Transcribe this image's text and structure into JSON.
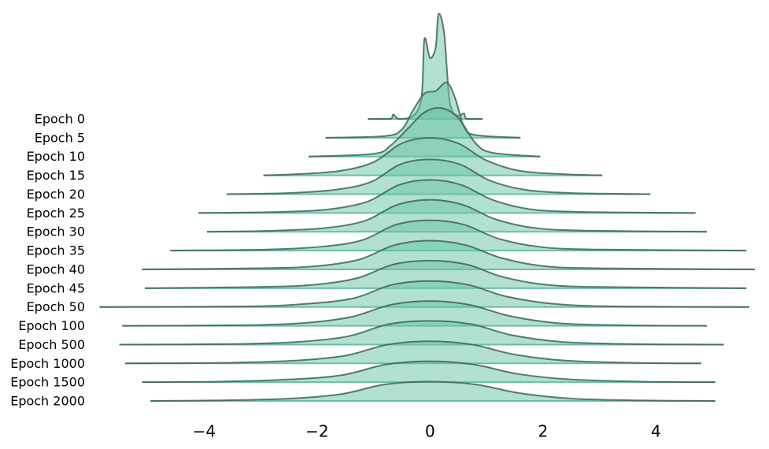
{
  "chart_data": {
    "type": "ridgeline",
    "xlim": [
      -5.9,
      5.75
    ],
    "xticks": [
      {
        "value": -4,
        "label": "−4"
      },
      {
        "value": -2,
        "label": "−2"
      },
      0,
      2,
      4
    ],
    "grid": false,
    "fill_color": "#66c2a5",
    "line_color": "#3f6359",
    "baseline_color": "#66c2a5",
    "series": [
      {
        "name": "Epoch 0",
        "x": [
          -1.1,
          -0.7,
          -0.65,
          -0.55,
          -0.3,
          -0.15,
          -0.1,
          0,
          0.1,
          0.15,
          0.25,
          0.35,
          0.5,
          0.6,
          0.65,
          0.93
        ],
        "values": [
          0,
          0,
          0.08,
          0,
          0.05,
          0.4,
          1.45,
          1.1,
          1.3,
          1.9,
          1.55,
          0.3,
          0.05,
          0.1,
          0,
          0
        ]
      },
      {
        "name": "Epoch 5",
        "x": [
          -1.85,
          -0.8,
          -0.5,
          -0.3,
          -0.1,
          0.1,
          0.3,
          0.45,
          0.6,
          0.8,
          1.6
        ],
        "values": [
          0,
          0.03,
          0.15,
          0.5,
          0.8,
          0.85,
          1.0,
          0.7,
          0.2,
          0.05,
          0
        ]
      },
      {
        "name": "Epoch 10",
        "x": [
          -2.15,
          -1,
          -0.7,
          -0.4,
          -0.1,
          0.2,
          0.5,
          0.8,
          1.1,
          1.95
        ],
        "values": [
          0,
          0.05,
          0.2,
          0.5,
          0.8,
          0.88,
          0.7,
          0.25,
          0.07,
          0
        ]
      },
      {
        "name": "Epoch 15",
        "x": [
          -2.95,
          -2.4,
          -1.6,
          -1,
          -0.5,
          0,
          0.5,
          1,
          1.6,
          2.4,
          3.05
        ],
        "values": [
          0,
          0.02,
          0.08,
          0.24,
          0.58,
          0.68,
          0.58,
          0.27,
          0.08,
          0.02,
          0
        ]
      },
      {
        "name": "Epoch 20",
        "x": [
          -3.6,
          -2.52,
          -1.68,
          -1.05,
          -0.53,
          0,
          0.53,
          1.05,
          1.68,
          2.52,
          3.9
        ],
        "values": [
          0,
          0.02,
          0.08,
          0.22,
          0.54,
          0.63,
          0.54,
          0.25,
          0.08,
          0.02,
          0
        ]
      },
      {
        "name": "Epoch 25",
        "x": [
          -4.1,
          -2.64,
          -1.76,
          -1.1,
          -0.55,
          0,
          0.55,
          1.1,
          1.76,
          2.64,
          4.7
        ],
        "values": [
          0,
          0.02,
          0.07,
          0.21,
          0.51,
          0.6,
          0.51,
          0.24,
          0.07,
          0.02,
          0
        ]
      },
      {
        "name": "Epoch 30",
        "x": [
          -3.95,
          -2.76,
          -1.84,
          -1.15,
          -0.58,
          0,
          0.58,
          1.15,
          1.84,
          2.76,
          4.9
        ],
        "values": [
          0,
          0.02,
          0.07,
          0.2,
          0.49,
          0.58,
          0.49,
          0.23,
          0.07,
          0.02,
          0
        ]
      },
      {
        "name": "Epoch 35",
        "x": [
          -4.6,
          -2.88,
          -1.92,
          -1.2,
          -0.6,
          0,
          0.6,
          1.2,
          1.92,
          2.88,
          5.6
        ],
        "values": [
          0,
          0.02,
          0.07,
          0.19,
          0.47,
          0.55,
          0.47,
          0.22,
          0.07,
          0.02,
          0
        ]
      },
      {
        "name": "Epoch 40",
        "x": [
          -5.1,
          -3,
          -2,
          -1.25,
          -0.63,
          0,
          0.63,
          1.25,
          2,
          3,
          5.75
        ],
        "values": [
          0,
          0.02,
          0.06,
          0.18,
          0.44,
          0.52,
          0.44,
          0.21,
          0.06,
          0.02,
          0
        ]
      },
      {
        "name": "Epoch 45",
        "x": [
          -5.05,
          -3.12,
          -2.08,
          -1.3,
          -0.65,
          0,
          0.65,
          1.3,
          2.08,
          3.12,
          5.6
        ],
        "values": [
          0,
          0.02,
          0.06,
          0.18,
          0.43,
          0.5,
          0.43,
          0.2,
          0.06,
          0.02,
          0
        ]
      },
      {
        "name": "Epoch 50",
        "x": [
          -5.85,
          -3.24,
          -2.16,
          -1.35,
          -0.68,
          0,
          0.68,
          1.35,
          2.16,
          3.24,
          5.65
        ],
        "values": [
          0,
          0.01,
          0.06,
          0.16,
          0.4,
          0.47,
          0.4,
          0.19,
          0.06,
          0.01,
          0
        ]
      },
      {
        "name": "Epoch 100",
        "x": [
          -5.45,
          -3.36,
          -2.24,
          -1.4,
          -0.7,
          0,
          0.7,
          1.4,
          2.24,
          3.36,
          4.9
        ],
        "values": [
          0,
          0.01,
          0.05,
          0.16,
          0.38,
          0.45,
          0.38,
          0.18,
          0.05,
          0.01,
          0
        ]
      },
      {
        "name": "Epoch 500",
        "x": [
          -5.5,
          -3.48,
          -2.32,
          -1.45,
          -0.73,
          0,
          0.73,
          1.45,
          2.32,
          3.48,
          5.2
        ],
        "values": [
          0,
          0.01,
          0.05,
          0.15,
          0.37,
          0.43,
          0.37,
          0.17,
          0.05,
          0.01,
          0
        ]
      },
      {
        "name": "Epoch 1000",
        "x": [
          -5.4,
          -3.6,
          -2.4,
          -1.5,
          -0.75,
          0,
          0.75,
          1.5,
          2.4,
          3.6,
          4.8
        ],
        "values": [
          0,
          0.01,
          0.05,
          0.14,
          0.34,
          0.4,
          0.34,
          0.16,
          0.05,
          0.01,
          0
        ]
      },
      {
        "name": "Epoch 1500",
        "x": [
          -5.1,
          -3.72,
          -2.48,
          -1.55,
          -0.78,
          0,
          0.78,
          1.55,
          2.48,
          3.72,
          5.05
        ],
        "values": [
          0,
          0.01,
          0.05,
          0.13,
          0.32,
          0.38,
          0.32,
          0.15,
          0.05,
          0.01,
          0
        ]
      },
      {
        "name": "Epoch 2000",
        "x": [
          -4.95,
          -3.84,
          -2.56,
          -1.6,
          -0.8,
          0,
          0.8,
          1.6,
          2.56,
          3.84,
          5.05
        ],
        "values": [
          0,
          0.01,
          0.04,
          0.12,
          0.3,
          0.35,
          0.3,
          0.14,
          0.04,
          0.01,
          0
        ]
      }
    ]
  }
}
